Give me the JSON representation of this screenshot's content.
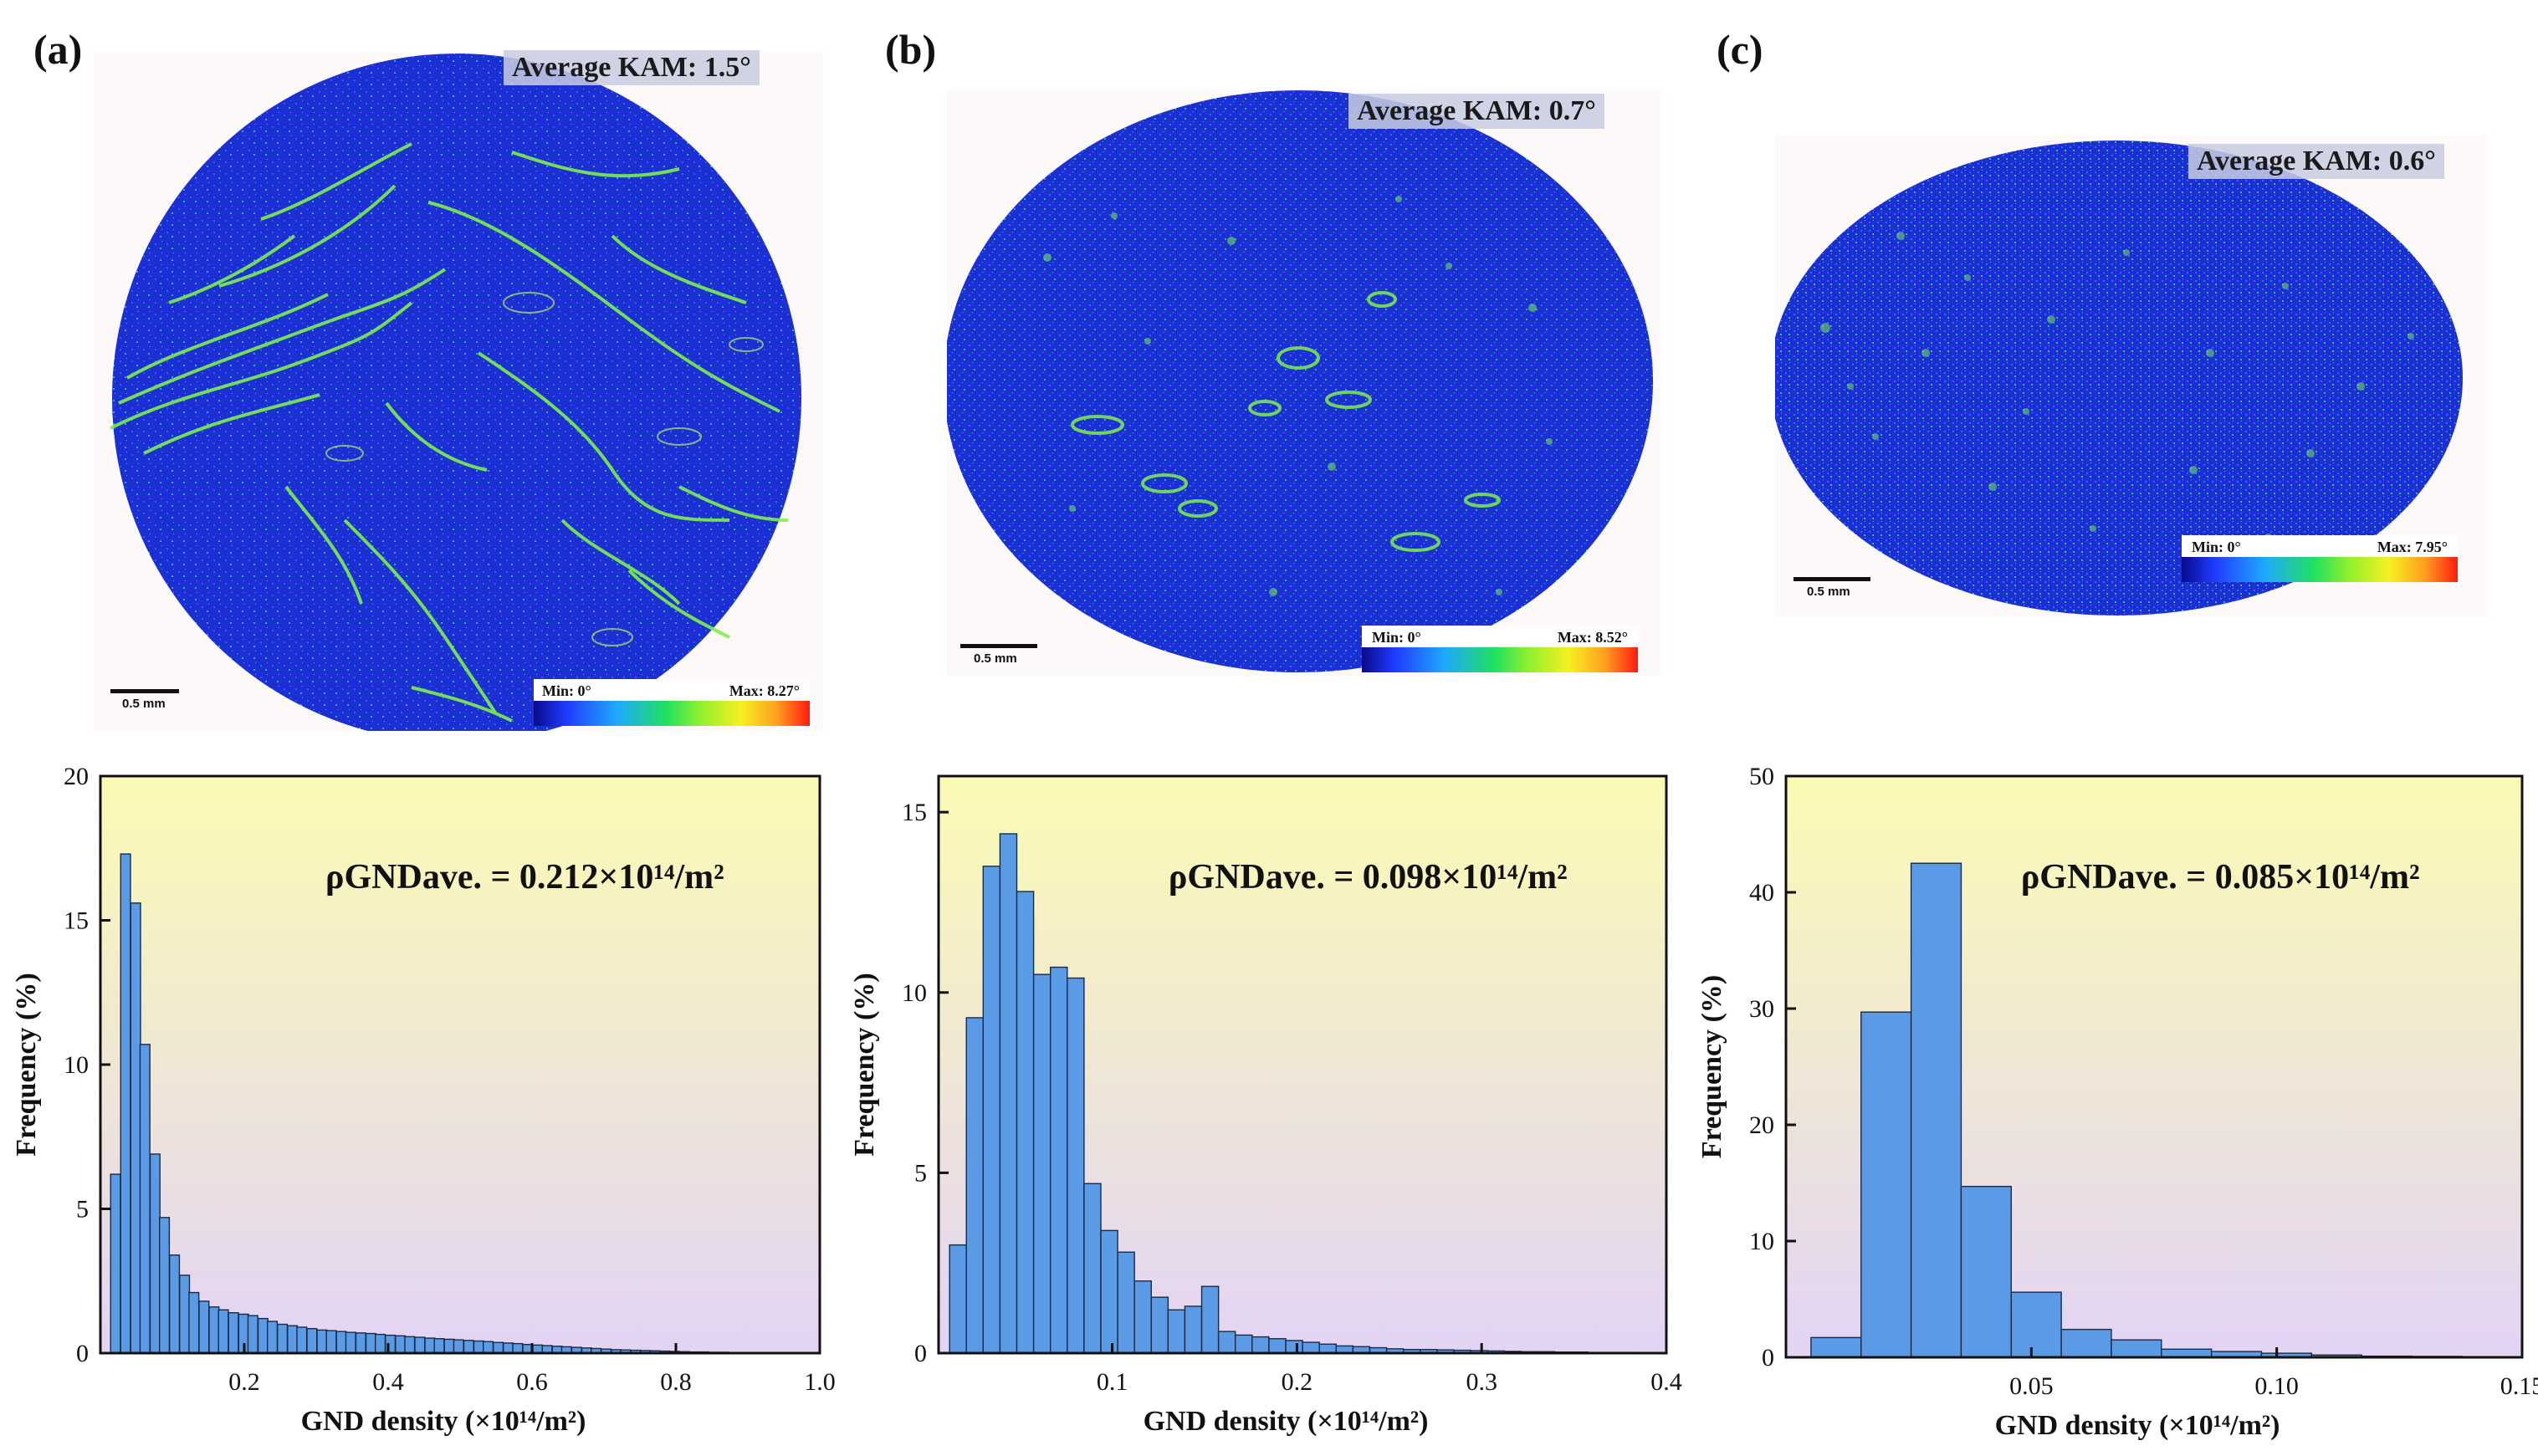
{
  "panels": [
    {
      "letter": "(a)",
      "kam_label": "Average KAM: 1.5°",
      "legend_min": "Min: 0°",
      "legend_max": "Max: 8.27°",
      "scale_label": "0.5 mm"
    },
    {
      "letter": "(b)",
      "kam_label": "Average KAM: 0.7°",
      "legend_min": "Min: 0°",
      "legend_max": "Max: 8.52°",
      "scale_label": "0.5 mm"
    },
    {
      "letter": "(c)",
      "kam_label": "Average KAM: 0.6°",
      "legend_min": "Min: 0°",
      "legend_max": "Max: 7.95°",
      "scale_label": "0.5 mm"
    }
  ],
  "colors": {
    "bar_fill": "#5b9be6",
    "bar_stroke": "#1b2a44",
    "bg_top": "#fbfbb4",
    "bg_bottom": "#e3d3f5",
    "map_blue": "#1c2fd2",
    "map_green": "#7ef04a"
  },
  "chart_data": [
    {
      "type": "bar",
      "panel": "(a)",
      "xlabel": "GND density (×10¹⁴/m²)",
      "ylabel": "Frequency (%)",
      "annotation": "ρGNDave. = 0.212×10¹⁴/m²",
      "xlim": [
        0,
        1.0
      ],
      "ylim": [
        0,
        20
      ],
      "xticks": [
        0.2,
        0.4,
        0.6,
        0.8,
        1.0
      ],
      "xtick_labels": [
        "0.2",
        "0.4",
        "0.6",
        "0.8",
        "1.0"
      ],
      "yticks": [
        0,
        5,
        10,
        15,
        20
      ],
      "ytick_labels": [
        "0",
        "5",
        "10",
        "15",
        "20"
      ],
      "bin_width": 0.0136,
      "x": [
        0.021,
        0.035,
        0.049,
        0.062,
        0.076,
        0.089,
        0.103,
        0.117,
        0.13,
        0.144,
        0.158,
        0.171,
        0.185,
        0.199,
        0.212,
        0.226,
        0.239,
        0.253,
        0.267,
        0.28,
        0.294,
        0.308,
        0.321,
        0.335,
        0.348,
        0.362,
        0.376,
        0.389,
        0.403,
        0.417,
        0.43,
        0.444,
        0.458,
        0.471,
        0.485,
        0.498,
        0.512,
        0.526,
        0.539,
        0.553,
        0.567,
        0.58,
        0.594,
        0.608,
        0.621,
        0.635,
        0.648,
        0.662,
        0.676,
        0.689,
        0.703,
        0.717,
        0.73,
        0.744,
        0.758,
        0.771,
        0.785,
        0.798,
        0.812,
        0.826,
        0.839,
        0.853,
        0.867,
        0.88,
        0.894,
        0.908,
        0.921,
        0.935,
        0.948,
        0.962,
        0.976,
        0.989
      ],
      "values": [
        6.2,
        17.3,
        15.6,
        10.7,
        6.9,
        4.7,
        3.4,
        2.7,
        2.1,
        1.8,
        1.6,
        1.5,
        1.4,
        1.35,
        1.3,
        1.2,
        1.1,
        1.0,
        0.95,
        0.9,
        0.85,
        0.8,
        0.78,
        0.75,
        0.72,
        0.7,
        0.68,
        0.65,
        0.62,
        0.6,
        0.57,
        0.55,
        0.52,
        0.5,
        0.48,
        0.46,
        0.44,
        0.42,
        0.4,
        0.37,
        0.35,
        0.33,
        0.3,
        0.28,
        0.26,
        0.24,
        0.22,
        0.2,
        0.18,
        0.16,
        0.14,
        0.12,
        0.11,
        0.1,
        0.09,
        0.08,
        0.07,
        0.06,
        0.05,
        0.04,
        0.04,
        0.03,
        0.03,
        0.02,
        0.02,
        0.02,
        0.01,
        0.01,
        0.01,
        0.01,
        0.01,
        0.01
      ]
    },
    {
      "type": "bar",
      "panel": "(b)",
      "xlabel": "GND density (×10¹⁴/m²)",
      "ylabel": "Frequency (%)",
      "annotation": "ρGNDave. = 0.098×10¹⁴/m²",
      "xlim": [
        0.006,
        0.4
      ],
      "ylim": [
        0,
        16
      ],
      "xticks": [
        0.1,
        0.2,
        0.3,
        0.4
      ],
      "xtick_labels": [
        "0.1",
        "0.2",
        "0.3",
        "0.4"
      ],
      "yticks": [
        0,
        5,
        10,
        15
      ],
      "ytick_labels": [
        "0",
        "5",
        "10",
        "15"
      ],
      "bin_width": 0.0091,
      "x": [
        0.0165,
        0.0256,
        0.0347,
        0.0438,
        0.0529,
        0.062,
        0.0711,
        0.0802,
        0.0893,
        0.0984,
        0.1075,
        0.1166,
        0.1257,
        0.1348,
        0.1439,
        0.153,
        0.1621,
        0.1712,
        0.1803,
        0.1894,
        0.1985,
        0.2076,
        0.2167,
        0.2258,
        0.2349,
        0.244,
        0.2531,
        0.2622,
        0.2713,
        0.2804,
        0.2895,
        0.2986,
        0.3077,
        0.3168,
        0.3259,
        0.335,
        0.3441,
        0.3532,
        0.3623,
        0.3714,
        0.3805,
        0.3896
      ],
      "values": [
        3.0,
        9.3,
        13.5,
        14.4,
        12.8,
        10.5,
        10.7,
        10.4,
        4.7,
        3.4,
        2.8,
        2.0,
        1.55,
        1.2,
        1.3,
        1.85,
        0.6,
        0.5,
        0.45,
        0.4,
        0.35,
        0.3,
        0.25,
        0.2,
        0.18,
        0.15,
        0.12,
        0.1,
        0.1,
        0.09,
        0.08,
        0.07,
        0.06,
        0.05,
        0.04,
        0.04,
        0.03,
        0.03,
        0.02,
        0.02,
        0.02,
        0.01
      ]
    },
    {
      "type": "bar",
      "panel": "(c)",
      "xlabel": "GND density (×10¹⁴/m²)",
      "ylabel": "Frequency (%)",
      "annotation": "ρGNDave. = 0.085×10¹⁴/m²",
      "xlim": [
        0,
        0.15
      ],
      "ylim": [
        0,
        50
      ],
      "xticks": [
        0.05,
        0.1,
        0.15
      ],
      "xtick_labels": [
        "0.05",
        "0.10",
        "0.15"
      ],
      "yticks": [
        0,
        10,
        20,
        30,
        40,
        50
      ],
      "ytick_labels": [
        "0",
        "10",
        "20",
        "30",
        "40",
        "50"
      ],
      "bin_width": 0.0102,
      "x": [
        0.0102,
        0.0204,
        0.0306,
        0.0408,
        0.051,
        0.0612,
        0.0714,
        0.0816,
        0.0918,
        0.102,
        0.1122,
        0.1224,
        0.1326,
        0.1428
      ],
      "values": [
        1.7,
        29.7,
        42.5,
        14.7,
        5.6,
        2.4,
        1.5,
        0.7,
        0.5,
        0.35,
        0.2,
        0.1,
        0.08,
        0.05
      ]
    }
  ]
}
